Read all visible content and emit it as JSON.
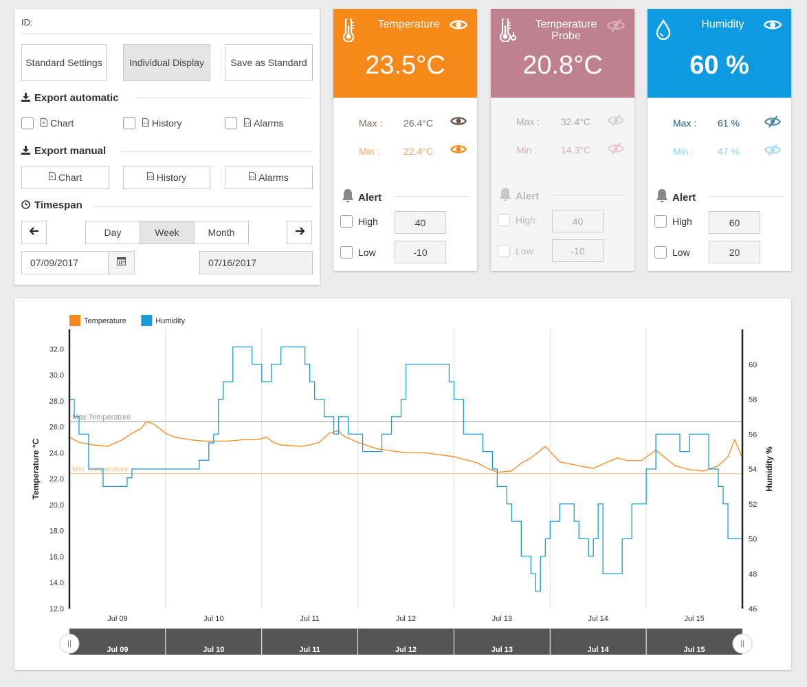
{
  "settings": {
    "id_label": "ID:",
    "buttons": {
      "standard": "Standard Settings",
      "individual": "Individual Display",
      "save": "Save as Standard"
    },
    "export_automatic": {
      "title": "Export automatic",
      "items": [
        "Chart",
        "History",
        "Alarms"
      ]
    },
    "export_manual": {
      "title": "Export manual",
      "items": [
        "Chart",
        "History",
        "Alarms"
      ]
    },
    "timespan": {
      "title": "Timespan",
      "options": [
        "Day",
        "Week",
        "Month"
      ],
      "selected": "Week",
      "start_date": "07/09/2017",
      "end_date": "07/16/2017"
    }
  },
  "cards": {
    "temperature": {
      "title": "Temperature",
      "value": "23.5°C",
      "max_label": "Max :",
      "max_value": "26.4°C",
      "min_label": "Min :",
      "min_value": "22.4°C",
      "alert_title": "Alert",
      "high_label": "High",
      "high_value": "40",
      "low_label": "Low",
      "low_value": "-10",
      "color": "#f7891a"
    },
    "probe": {
      "title": "Temperature Probe",
      "value": "20.8°C",
      "max_label": "Max :",
      "max_value": "32.4°C",
      "min_label": "Min :",
      "min_value": "14.3°C",
      "alert_title": "Alert",
      "high_label": "High",
      "high_value": "40",
      "low_label": "Low",
      "low_value": "-10",
      "color": "#bf818f"
    },
    "humidity": {
      "title": "Humidity",
      "value": "60 %",
      "max_label": "Max :",
      "max_value": "61 %",
      "min_label": "Min :",
      "min_value": "47 %",
      "alert_title": "Alert",
      "high_label": "High",
      "high_value": "60",
      "low_label": "Low",
      "low_value": "20",
      "color": "#0d9ae0"
    }
  },
  "chart_data": {
    "type": "line",
    "legend": [
      {
        "name": "Temperature",
        "color": "#f7891a"
      },
      {
        "name": "Humidity",
        "color": "#1a9ad6"
      }
    ],
    "ylabel_left": "Temperature °C",
    "ylabel_right": "Humidity %",
    "y_left_range": [
      12,
      33.5
    ],
    "y_left_ticks": [
      "12.0",
      "14.0",
      "16.0",
      "18.0",
      "20.0",
      "22.0",
      "24.0",
      "26.0",
      "28.0",
      "30.0",
      "32.0"
    ],
    "y_right_range": [
      46,
      62
    ],
    "y_right_ticks": [
      "46",
      "48",
      "50",
      "52",
      "54",
      "56",
      "58",
      "60"
    ],
    "x_range": [
      8.5,
      15.5
    ],
    "x_ticks": [
      "Jul 09",
      "Jul 10",
      "Jul 11",
      "Jul 12",
      "Jul 13",
      "Jul 14",
      "Jul 15"
    ],
    "navigator_labels": [
      "Jul 09",
      "Jul 10",
      "Jul 11",
      "Jul 12",
      "Jul 13",
      "Jul 14",
      "Jul 15"
    ],
    "reference_lines": [
      {
        "label": "Max Temperature",
        "value": 26.4,
        "color": "#999999"
      },
      {
        "label": "Min Temperature",
        "value": 22.4,
        "color": "#f7c48a"
      }
    ],
    "series": [
      {
        "name": "Temperature",
        "axis": "left",
        "color": "#f7891a",
        "x": [
          8.5,
          8.6,
          8.75,
          8.9,
          9.05,
          9.15,
          9.25,
          9.3,
          9.38,
          9.5,
          9.6,
          9.75,
          9.9,
          10.0,
          10.15,
          10.3,
          10.45,
          10.55,
          10.62,
          10.7,
          10.9,
          11.0,
          11.1,
          11.2,
          11.3,
          11.35,
          11.5,
          11.7,
          11.9,
          12.0,
          12.2,
          12.4,
          12.5,
          12.6,
          12.75,
          12.85,
          12.95,
          13.1,
          13.2,
          13.3,
          13.45,
          13.6,
          13.8,
          13.95,
          14.1,
          14.2,
          14.3,
          14.45,
          14.6,
          14.8,
          14.95,
          15.1,
          15.25,
          15.35,
          15.42,
          15.5
        ],
        "y": [
          25.2,
          24.8,
          24.6,
          24.5,
          25.0,
          25.5,
          25.9,
          26.4,
          26.2,
          25.5,
          25.2,
          25.0,
          24.9,
          24.9,
          24.9,
          25.0,
          25.0,
          25.2,
          24.8,
          24.6,
          24.5,
          24.6,
          24.8,
          25.5,
          25.7,
          25.3,
          24.8,
          24.3,
          24.1,
          24.0,
          24.0,
          23.8,
          23.7,
          23.5,
          23.2,
          22.8,
          22.5,
          22.6,
          23.2,
          23.6,
          24.5,
          23.3,
          23.0,
          22.8,
          23.3,
          23.6,
          23.4,
          23.4,
          24.2,
          23.0,
          22.7,
          22.6,
          23.0,
          23.7,
          25.0,
          23.6
        ]
      },
      {
        "name": "Humidity",
        "axis": "right",
        "color": "#1a9ad6",
        "x": [
          8.5,
          8.55,
          8.6,
          8.7,
          8.85,
          8.9,
          9.0,
          9.1,
          9.15,
          9.2,
          9.3,
          9.35,
          9.5,
          9.7,
          9.85,
          9.95,
          10.0,
          10.05,
          10.1,
          10.2,
          10.3,
          10.4,
          10.45,
          10.5,
          10.6,
          10.7,
          10.8,
          10.95,
          11.0,
          11.05,
          11.15,
          11.25,
          11.3,
          11.4,
          11.55,
          11.65,
          11.75,
          11.85,
          11.95,
          12.0,
          12.1,
          12.3,
          12.4,
          12.45,
          12.5,
          12.6,
          12.8,
          12.85,
          12.9,
          12.95,
          13.05,
          13.1,
          13.2,
          13.3,
          13.35,
          13.4,
          13.45,
          13.5,
          13.6,
          13.7,
          13.75,
          13.8,
          13.9,
          13.95,
          14.0,
          14.05,
          14.15,
          14.25,
          14.35,
          14.5,
          14.6,
          14.7,
          14.8,
          14.85,
          14.95,
          15.05,
          15.15,
          15.2,
          15.25,
          15.3,
          15.35,
          15.45,
          15.5
        ],
        "y": [
          58,
          57,
          56,
          54,
          53,
          53,
          53,
          53.5,
          54,
          54,
          54,
          54,
          54,
          54,
          54.5,
          55.5,
          56,
          58,
          59,
          61,
          61,
          60,
          60,
          59,
          60,
          61,
          61,
          60,
          59,
          58,
          57,
          56,
          57,
          56,
          55,
          55,
          56,
          57,
          58,
          60,
          60,
          60,
          60,
          59,
          58,
          56,
          55,
          55,
          54,
          53,
          52,
          51,
          49,
          48,
          47,
          49,
          50,
          51,
          52,
          52,
          51,
          50,
          49,
          50,
          52,
          48,
          48,
          50,
          52,
          54,
          56,
          56,
          56,
          55,
          56,
          56,
          54,
          54,
          53,
          52,
          50,
          50,
          52
        ]
      }
    ]
  }
}
